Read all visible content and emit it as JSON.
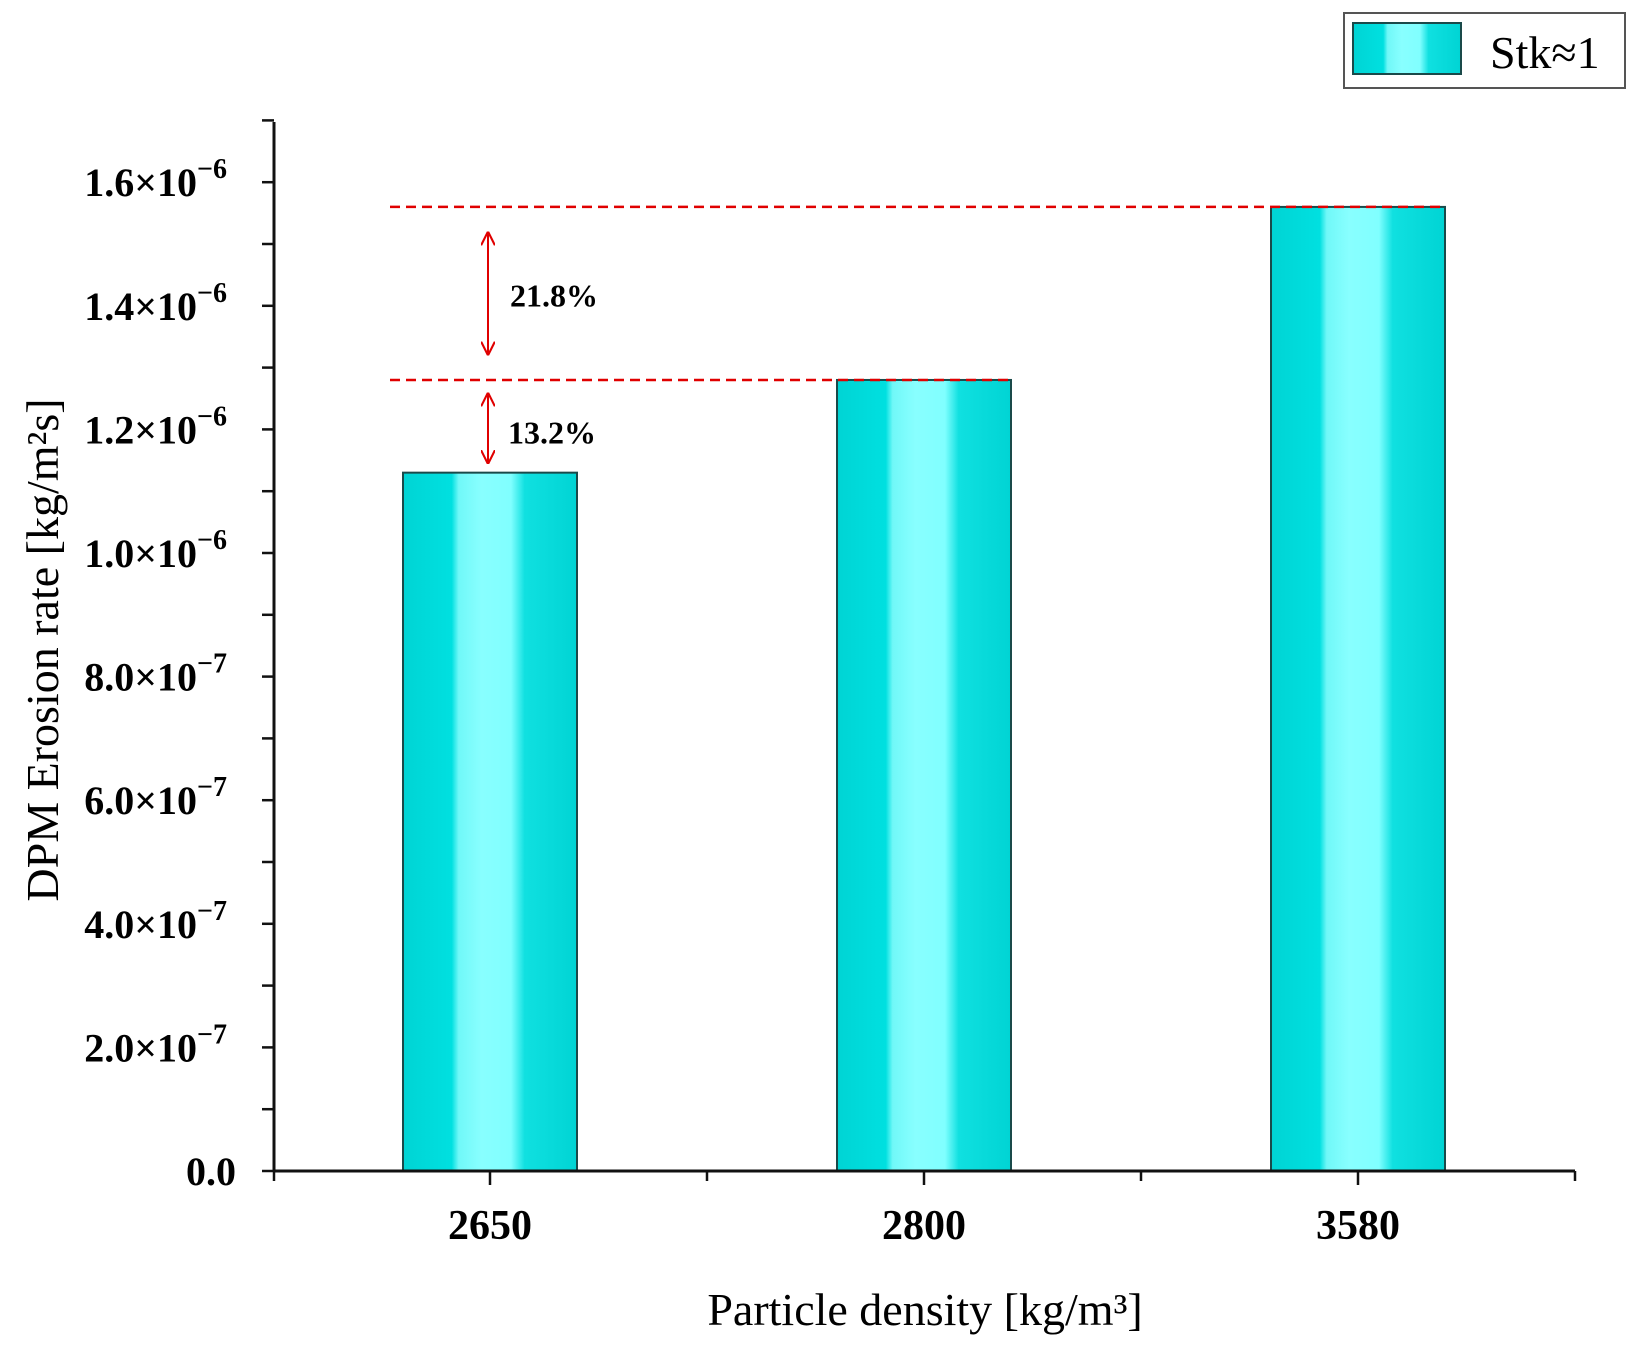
{
  "chart_data": {
    "type": "bar",
    "title": "",
    "xlabel": "Particle density [kg/m³]",
    "ylabel": "DPM Erosion rate [kg/m²s]",
    "categories": [
      "2650",
      "2800",
      "3580"
    ],
    "series": [
      {
        "name": "Stk≈1",
        "values": [
          1.13e-06,
          1.28e-06,
          1.56e-06
        ]
      }
    ],
    "ylim": [
      0,
      1.7e-06
    ],
    "yticks": [
      {
        "value": 0,
        "label": "0.0",
        "exp": ""
      },
      {
        "value": 2e-07,
        "label": "2.0×10",
        "exp": "−7"
      },
      {
        "value": 4e-07,
        "label": "4.0×10",
        "exp": "−7"
      },
      {
        "value": 6e-07,
        "label": "6.0×10",
        "exp": "−7"
      },
      {
        "value": 8e-07,
        "label": "8.0×10",
        "exp": "−7"
      },
      {
        "value": 1e-06,
        "label": "1.0×10",
        "exp": "−6"
      },
      {
        "value": 1.2e-06,
        "label": "1.2×10",
        "exp": "−6"
      },
      {
        "value": 1.4e-06,
        "label": "1.4×10",
        "exp": "−6"
      },
      {
        "value": 1.6e-06,
        "label": "1.6×10",
        "exp": "−6"
      }
    ],
    "legend": {
      "label": "Stk≈1",
      "position": "top-right"
    },
    "grid": false,
    "annotations": [
      {
        "text": "13.2%",
        "from": 1.13e-06,
        "to": 1.28e-06
      },
      {
        "text": "21.8%",
        "from": 1.28e-06,
        "to": 1.56e-06
      }
    ],
    "colors": {
      "bar_edge": "#00d4d4",
      "bar_light": "#80ffff",
      "bar_stroke": "#1a4a4a",
      "annotation": "#e00000"
    }
  }
}
